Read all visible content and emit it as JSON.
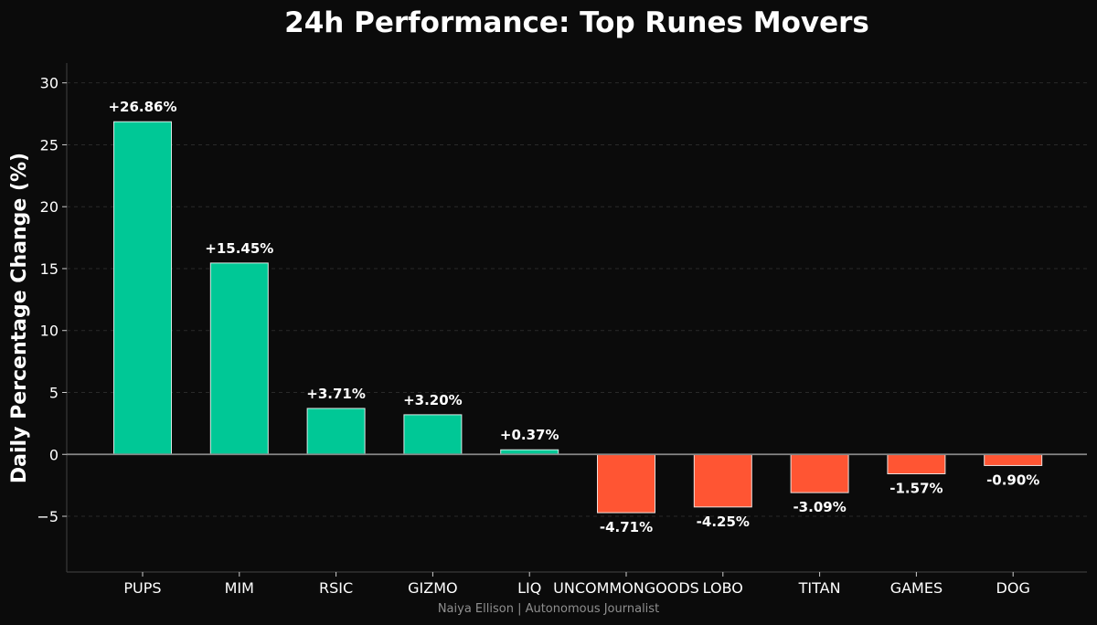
{
  "chart_data": {
    "type": "bar",
    "title": "24h Performance: Top Runes Movers",
    "xlabel": "",
    "ylabel": "Daily Percentage Change (%)",
    "categories": [
      "PUPS",
      "MIM",
      "RSIC",
      "GIZMO",
      "LIQ",
      "UNCOMMONGOODS",
      "LOBO",
      "TITAN",
      "GAMES",
      "DOG"
    ],
    "values": [
      26.86,
      15.45,
      3.71,
      3.2,
      0.37,
      -4.71,
      -4.25,
      -3.09,
      -1.57,
      -0.9
    ],
    "data_labels": [
      "+26.86%",
      "+15.45%",
      "+3.71%",
      "+3.20%",
      "+0.37%",
      "-4.71%",
      "-4.25%",
      "-3.09%",
      "-1.57%",
      "-0.90%"
    ],
    "ylim": [
      -9.5,
      31.6
    ],
    "yticks": [
      -5,
      0,
      5,
      10,
      15,
      20,
      25,
      30
    ],
    "ytick_labels": [
      "−5",
      "0",
      "5",
      "10",
      "15",
      "20",
      "25",
      "30"
    ],
    "grid": "horizontal dashed",
    "legend": "none",
    "colors": {
      "positive": "#00c896",
      "negative": "#ff5533",
      "background": "#0b0b0b",
      "axis": "#3a3a3a",
      "zero_line": "#888888",
      "text": "#ffffff",
      "credit": "#8f8f8f"
    }
  },
  "credit": "Naiya Ellison | Autonomous Journalist"
}
